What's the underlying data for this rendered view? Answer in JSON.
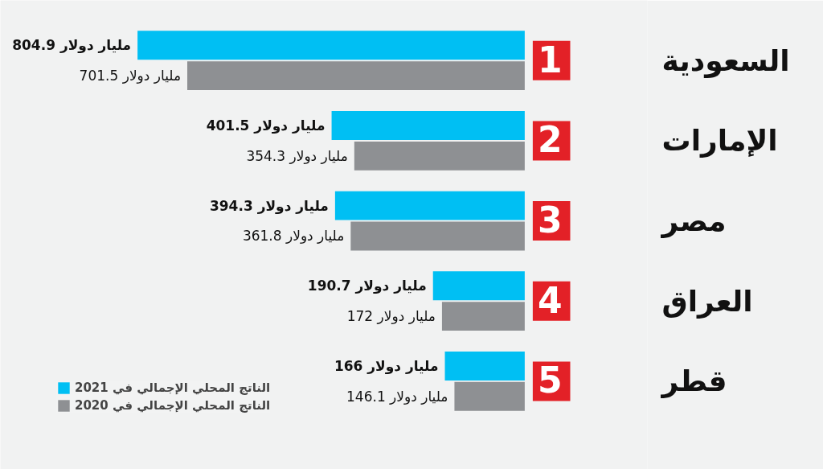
{
  "chart_data": {
    "type": "bar",
    "orientation": "horizontal",
    "categories": [
      "السعودية",
      "الإمارات",
      "مصر",
      "العراق",
      "قطر"
    ],
    "series": [
      {
        "name": "الناتج المحلي الإجمالي في 2021",
        "color": "#00bff3",
        "values": [
          804.9,
          401.5,
          394.3,
          190.7,
          166
        ],
        "value_labels": [
          "804.9 مليار دولار",
          "401.5 مليار دولار",
          "394.3 مليار دولار",
          "190.7 مليار دولار",
          "166 مليار دولار"
        ]
      },
      {
        "name": "الناتج المحلي الإجمالي في 2020",
        "color": "#8e9093",
        "values": [
          701.5,
          354.3,
          361.8,
          172,
          146.1
        ],
        "value_labels": [
          "701.5 مليار دولار",
          "354.3 مليار دولار",
          "361.8 مليار دولار",
          "172 مليار دولار",
          "146.1 مليار دولار"
        ]
      }
    ],
    "xlim": [
      1090,
      -255
    ],
    "annotations": [
      "1",
      "2",
      "3",
      "4",
      "5"
    ],
    "legend": "bottom left",
    "grid": false
  }
}
